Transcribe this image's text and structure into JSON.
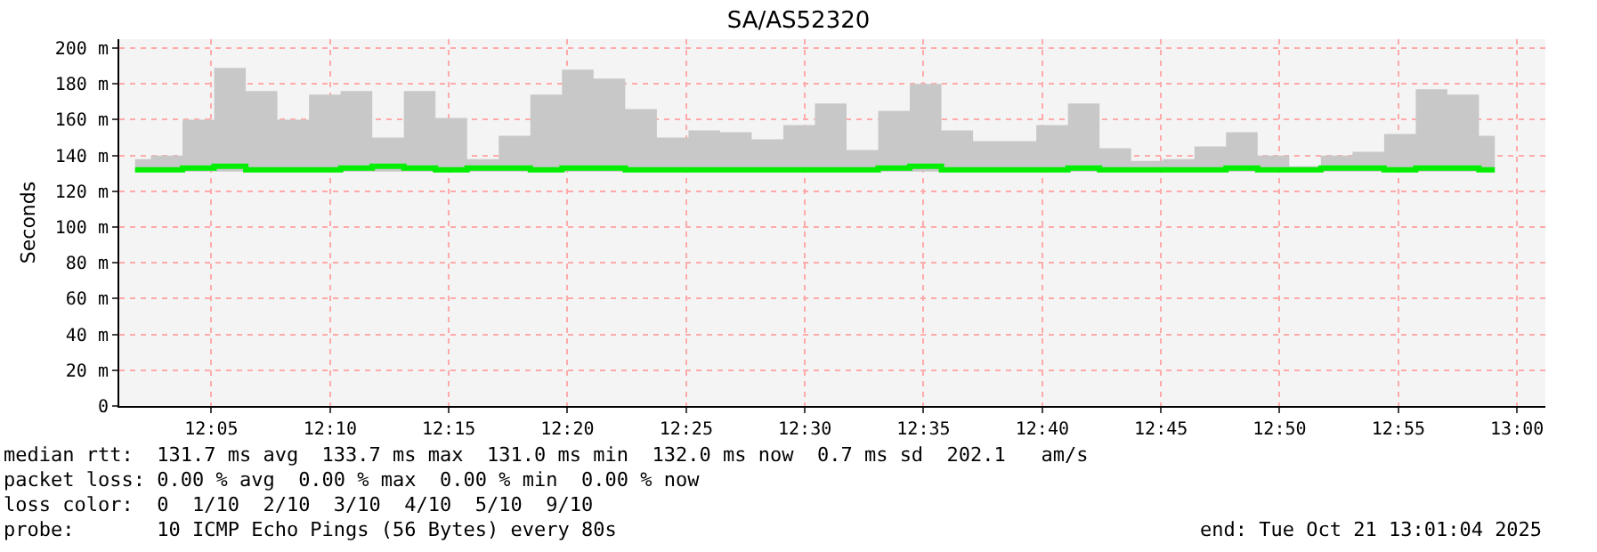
{
  "chart_data": {
    "type": "step",
    "title": "SA/AS52320",
    "ylabel": "Seconds",
    "x": [
      12.0298,
      12.052,
      12.0742,
      12.0964,
      12.1186,
      12.1408,
      12.163,
      12.1852,
      12.2074,
      12.2296,
      12.2518,
      12.274,
      12.2962,
      12.3184,
      12.3406,
      12.3628,
      12.385,
      12.4072,
      12.4294,
      12.4516,
      12.4738,
      12.496,
      12.5182,
      12.5404,
      12.5626,
      12.5848,
      12.607,
      12.6292,
      12.6514,
      12.6736,
      12.6958,
      12.718,
      12.7402,
      12.7624,
      12.7846,
      12.8068,
      12.829,
      12.8512,
      12.8734,
      12.8956,
      12.9178,
      12.94,
      12.9622,
      12.9844
    ],
    "series": [
      {
        "color": "#00ee00",
        "values": [
          132,
          132,
          133,
          134,
          132,
          132,
          132,
          133,
          134,
          133,
          132,
          133,
          133,
          132,
          133,
          133,
          132,
          132,
          132,
          132,
          132,
          132,
          132,
          132,
          133,
          134,
          132,
          132,
          132,
          132,
          133,
          132,
          132,
          132,
          132,
          133,
          132,
          132,
          133,
          133,
          132,
          133,
          133,
          132
        ],
        "lower": [
          131,
          131,
          131,
          131,
          131,
          131,
          131,
          131,
          131,
          131,
          131,
          131,
          131,
          131,
          131,
          131,
          131,
          131,
          131,
          131,
          131,
          131,
          131,
          131,
          131,
          131,
          131,
          131,
          131,
          131,
          131,
          131,
          131,
          131,
          131,
          131,
          131,
          131,
          131,
          131,
          131,
          131,
          131,
          131
        ],
        "upper": [
          138,
          140,
          160,
          189,
          176,
          160,
          174,
          176,
          150,
          176,
          161,
          138,
          151,
          174,
          188,
          183,
          166,
          150,
          154,
          153,
          149,
          157,
          169,
          143,
          165,
          180,
          154,
          148,
          148,
          157,
          169,
          144,
          137,
          138,
          145,
          153,
          140,
          134,
          140,
          142,
          152,
          177,
          174,
          151
        ]
      }
    ],
    "xlim": [
      12.0187,
      13.0199
    ],
    "xticks": [
      {
        "value": 12.0833,
        "label": "12:05"
      },
      {
        "value": 12.1667,
        "label": "12:10"
      },
      {
        "value": 12.25,
        "label": "12:15"
      },
      {
        "value": 12.3333,
        "label": "12:20"
      },
      {
        "value": 12.4167,
        "label": "12:25"
      },
      {
        "value": 12.5,
        "label": "12:30"
      },
      {
        "value": 12.5833,
        "label": "12:35"
      },
      {
        "value": 12.6667,
        "label": "12:40"
      },
      {
        "value": 12.75,
        "label": "12:45"
      },
      {
        "value": 12.8333,
        "label": "12:50"
      },
      {
        "value": 12.9167,
        "label": "12:55"
      },
      {
        "value": 13.0,
        "label": "13:00"
      }
    ],
    "ylim": [
      0,
      205
    ],
    "yticks": [
      0,
      {
        "value": 20,
        "label": "20 m"
      },
      {
        "value": 40,
        "label": "40 m"
      },
      {
        "value": 60,
        "label": "60 m"
      },
      {
        "value": 80,
        "label": "80 m"
      },
      {
        "value": 100,
        "label": "100 m"
      },
      {
        "value": 120,
        "label": "120 m"
      },
      {
        "value": 140,
        "label": "140 m"
      },
      {
        "value": 160,
        "label": "160 m"
      },
      {
        "value": 180,
        "label": "180 m"
      },
      {
        "value": 200,
        "label": "200 m"
      }
    ],
    "grid": true,
    "annotations": [
      "median rtt:  131.7 ms avg  133.7 ms max  131.0 ms min  132.0 ms now  0.7 ms sd  202.1   am/s",
      "packet loss: 0.00 % avg  0.00 % max  0.00 % min  0.00 % now",
      "loss color:  0  1/10  2/10  3/10  4/10  5/10  9/10",
      "probe:       10 ICMP Echo Pings (56 Bytes) every 80s",
      "end: Tue Oct 21 13:01:04 2025"
    ]
  }
}
